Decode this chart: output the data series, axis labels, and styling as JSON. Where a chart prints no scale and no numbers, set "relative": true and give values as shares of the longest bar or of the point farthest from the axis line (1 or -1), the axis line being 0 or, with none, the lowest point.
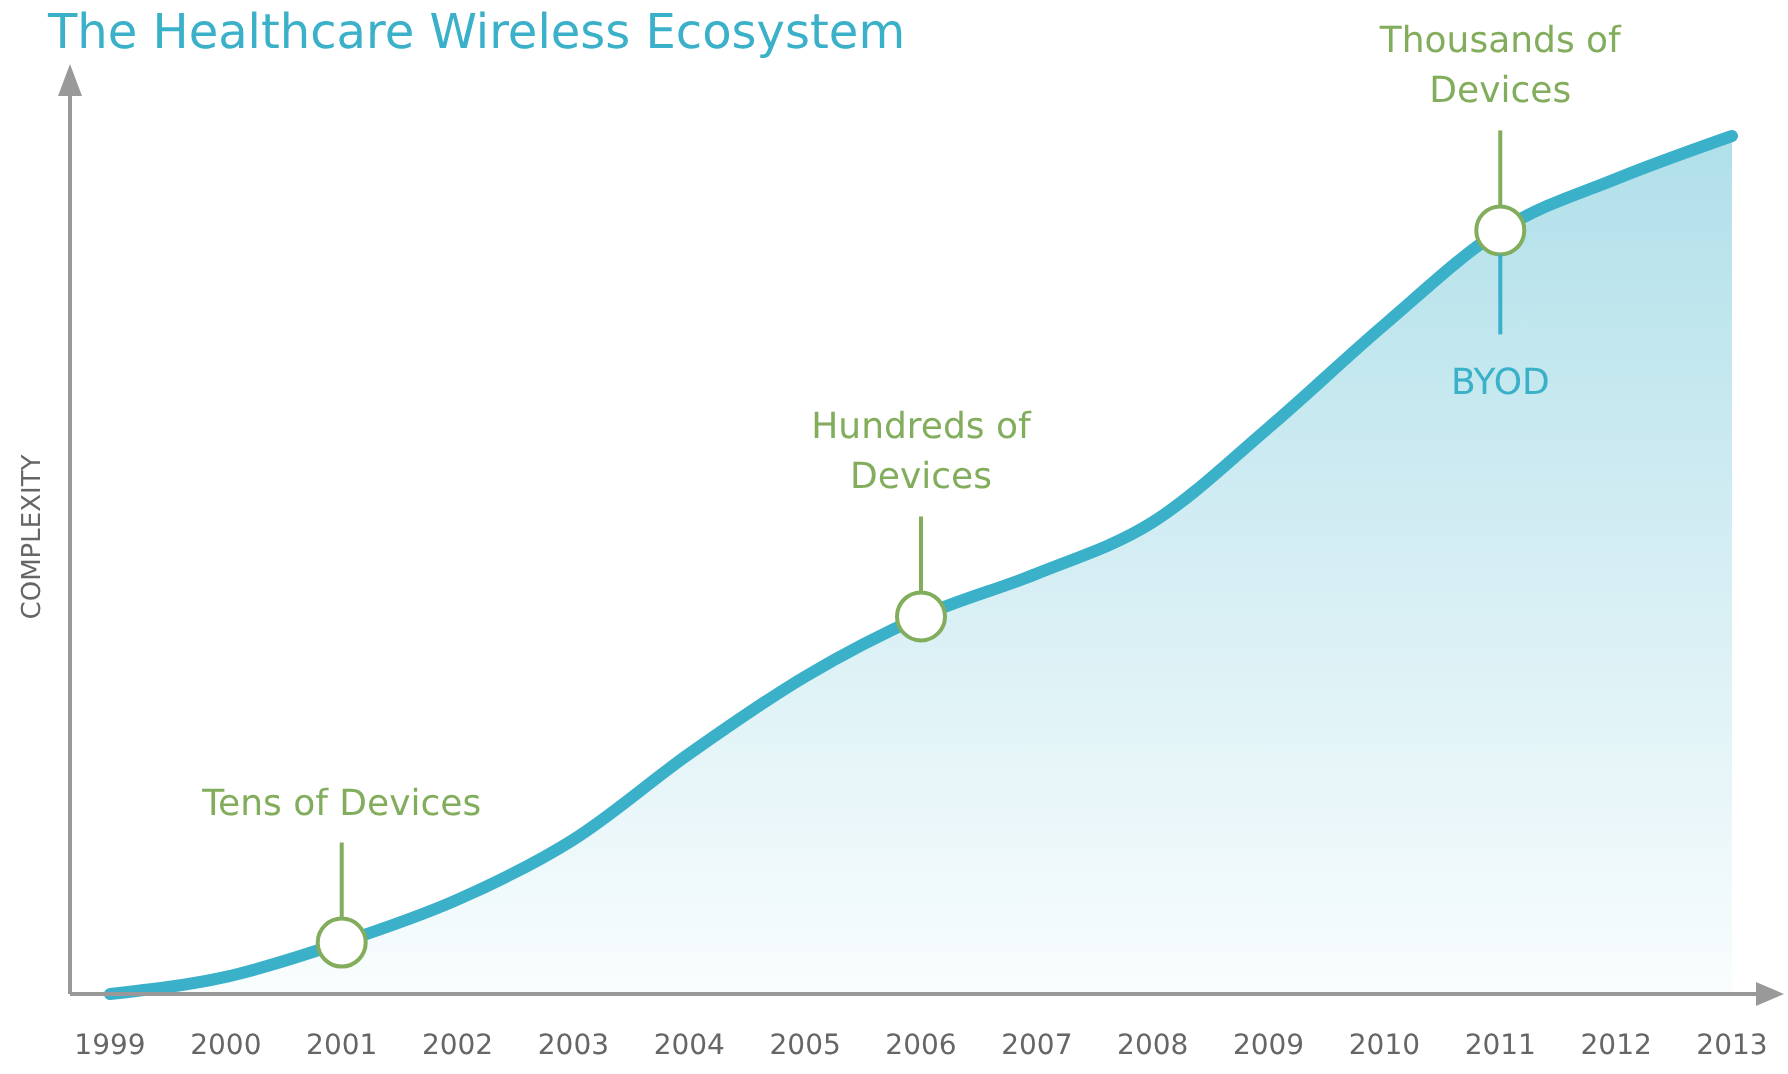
{
  "chart_data": {
    "type": "area",
    "title": "The Healthcare Wireless Ecosystem",
    "ylabel": "COMPLEXITY",
    "relative": true,
    "categories": [
      "1999",
      "2000",
      "2001",
      "2002",
      "2003",
      "2004",
      "2005",
      "2006",
      "2007",
      "2008",
      "2009",
      "2010",
      "2011",
      "2012",
      "2013"
    ],
    "series": [
      {
        "color": "#3ab0c9",
        "values": [
          0,
          0.02,
          0.06,
          0.11,
          0.18,
          0.28,
          0.37,
          0.44,
          0.49,
          0.55,
          0.66,
          0.78,
          0.89,
          0.95,
          1
        ]
      }
    ],
    "annotations": [
      "Tens of Devices",
      "Hundreds of\nDevices",
      "Thousands of\nDevices",
      "BYOD"
    ]
  }
}
